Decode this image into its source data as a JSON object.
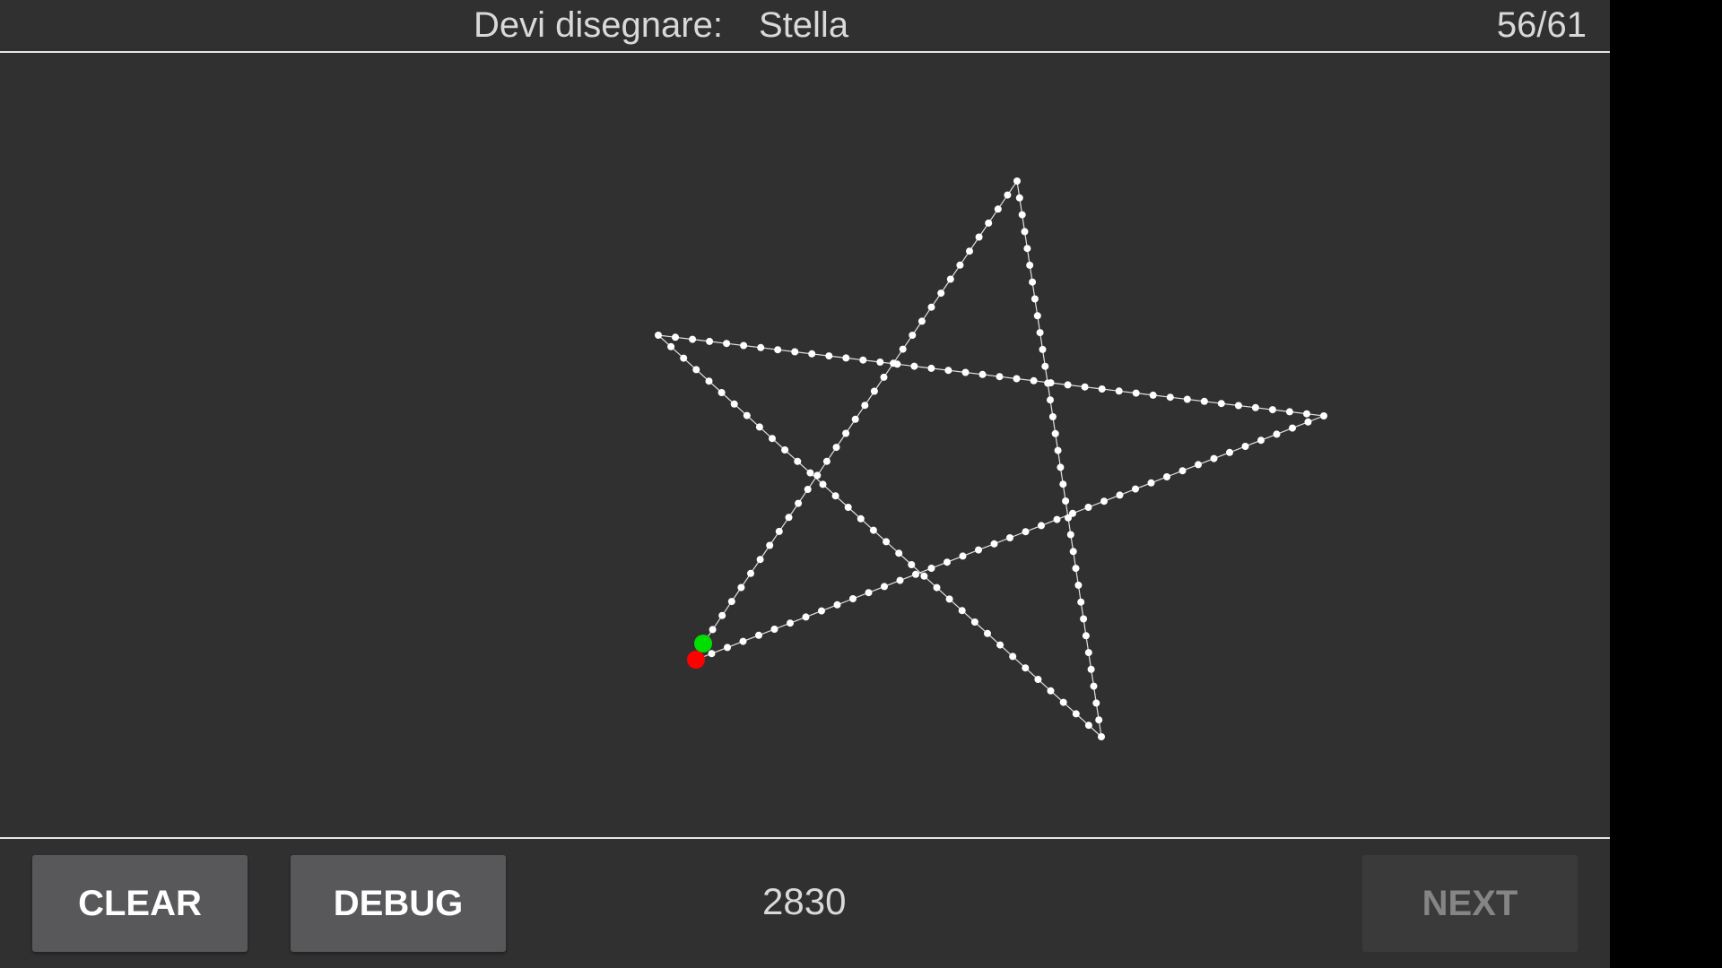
{
  "header": {
    "prompt_label": "Devi disegnare:",
    "target_word": "Stella",
    "progress": "56/61"
  },
  "drawing": {
    "shape": "five-pointed star",
    "stroke_color": "#ffffff",
    "start_marker_color": "#00dd00",
    "end_marker_color": "#ff0000"
  },
  "footer": {
    "clear_label": "CLEAR",
    "debug_label": "DEBUG",
    "score": "2830",
    "next_label": "NEXT",
    "next_enabled": false
  },
  "colors": {
    "background": "#303030",
    "button": "#58585a",
    "button_disabled": "#3a3a3a",
    "text": "#d9d9d9"
  }
}
